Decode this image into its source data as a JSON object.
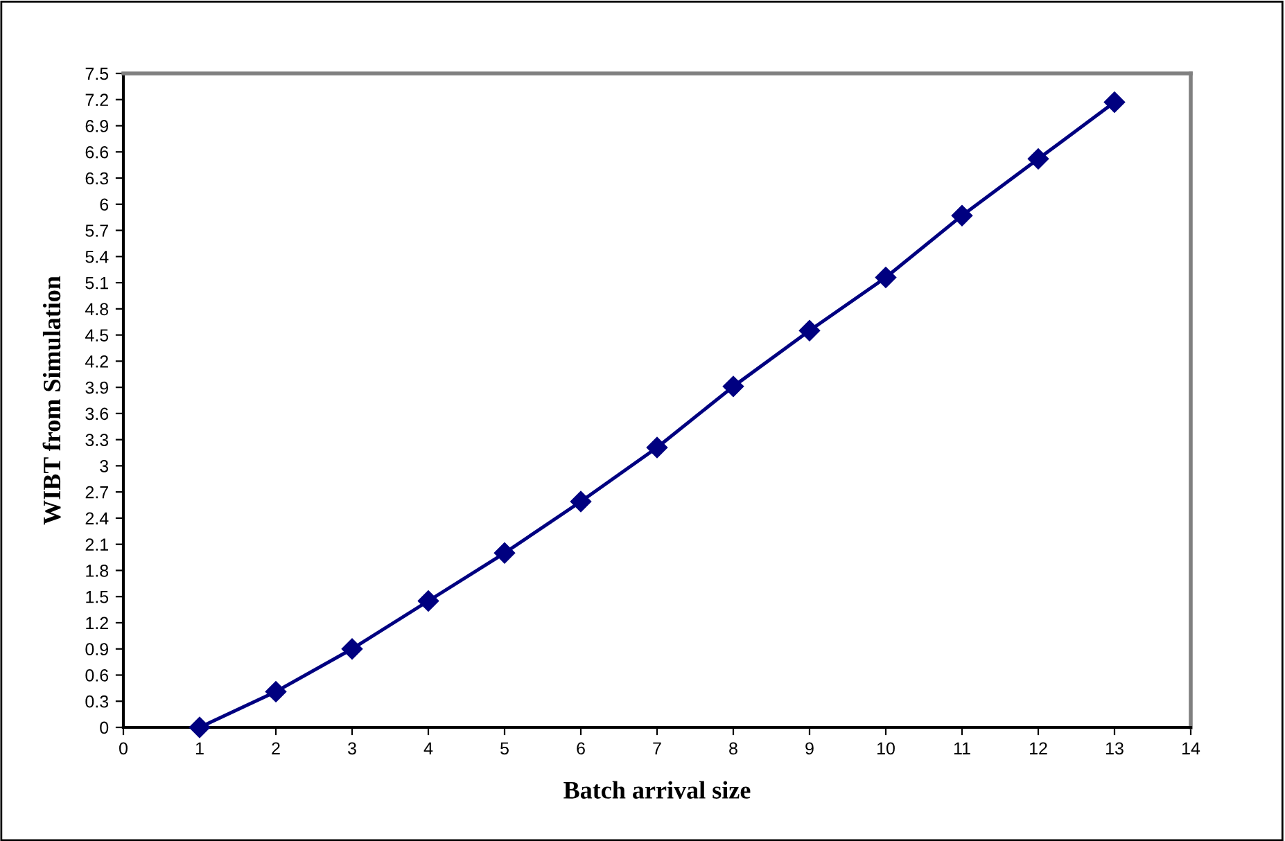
{
  "chart_data": {
    "type": "line",
    "xlabel": "Batch arrival size",
    "ylabel": "WIBT from Simulation",
    "x": [
      1,
      2,
      3,
      4,
      5,
      6,
      7,
      8,
      9,
      10,
      11,
      12,
      13
    ],
    "series": [
      {
        "color": "#000080",
        "values": [
          0,
          0.41,
          0.9,
          1.45,
          2.0,
          2.59,
          3.21,
          3.91,
          4.55,
          5.16,
          5.87,
          6.52,
          7.17
        ]
      }
    ],
    "xlim": [
      0,
      14
    ],
    "xticks": [
      0,
      1,
      2,
      3,
      4,
      5,
      6,
      7,
      8,
      9,
      10,
      11,
      12,
      13,
      14
    ],
    "ylim": [
      0,
      7.5
    ],
    "yticks": [
      0,
      0.3,
      0.6,
      0.9,
      1.2,
      1.5,
      1.8,
      2.1,
      2.4,
      2.7,
      3,
      3.3,
      3.6,
      3.9,
      4.2,
      4.5,
      4.8,
      5.1,
      5.4,
      5.7,
      6,
      6.3,
      6.6,
      6.9,
      7.2,
      7.5
    ],
    "marker": "diamond",
    "line_style": "solid",
    "grid": false,
    "legend": false
  }
}
